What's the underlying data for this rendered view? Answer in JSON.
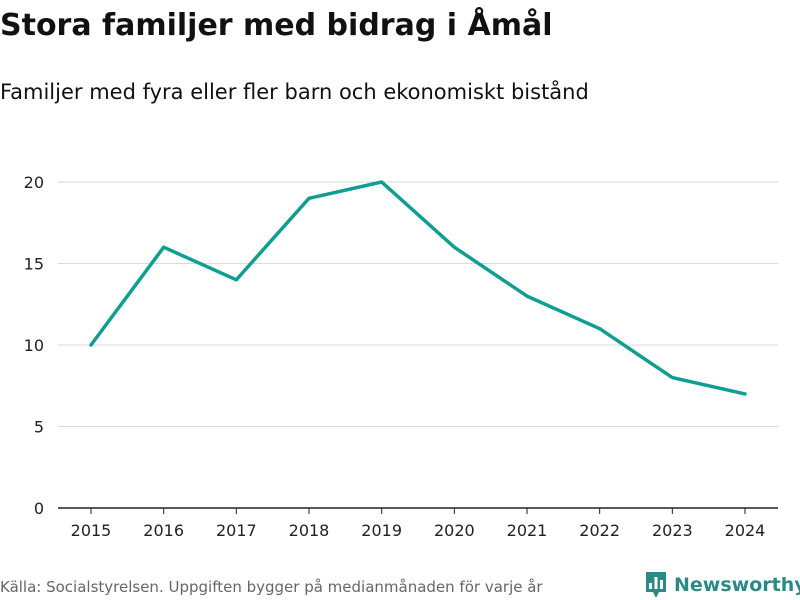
{
  "chart_data": {
    "type": "line",
    "title": "Stora familjer med bidrag i Åmål",
    "subtitle": "Familjer med fyra eller fler barn och ekonomiskt bistånd",
    "xlabel": "",
    "ylabel": "",
    "categories": [
      "2015",
      "2016",
      "2017",
      "2018",
      "2019",
      "2020",
      "2021",
      "2022",
      "2023",
      "2024"
    ],
    "series": [
      {
        "name": "Familjer",
        "values": [
          10,
          16,
          14,
          19,
          20,
          16,
          13,
          11,
          8,
          7
        ]
      }
    ],
    "ylim": [
      0,
      20
    ],
    "yticks": [
      0,
      5,
      10,
      15,
      20
    ],
    "grid": true,
    "legend": "none",
    "line_color": "#109e93"
  },
  "source": "Källa: Socialstyrelsen. Uppgiften bygger på medianmånaden för varje år",
  "brand": {
    "name": "Newsworthy",
    "color": "#2b8a86"
  }
}
